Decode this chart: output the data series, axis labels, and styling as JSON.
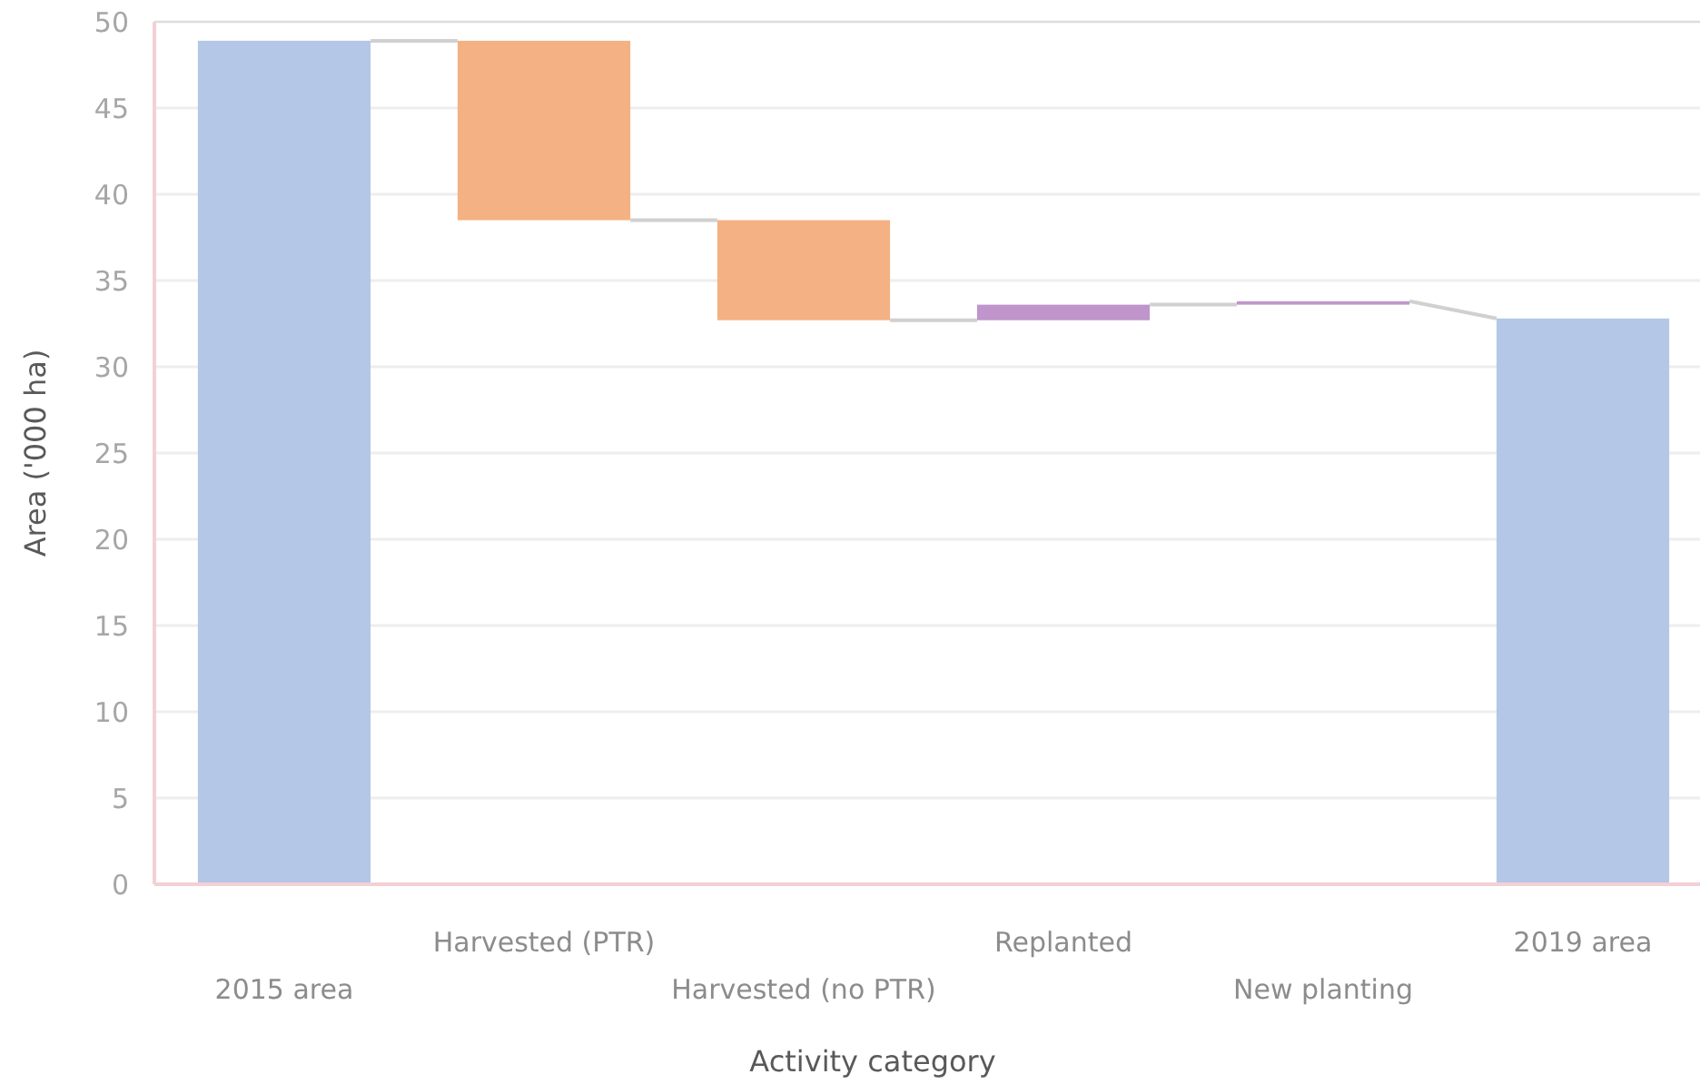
{
  "chart_data": {
    "type": "bar",
    "xlabel": "Activity category",
    "ylabel": "Area ('000 ha)",
    "categories": [
      "2015 area",
      "Harvested (PTR)",
      "Harvested (no PTR)",
      "Replanted",
      "New planting",
      "2019 area"
    ],
    "values": [
      48.9,
      -10.4,
      -5.8,
      0.9,
      0.2,
      32.8
    ],
    "base": [
      0,
      48.9,
      38.5,
      32.7,
      33.6,
      0
    ],
    "colors": [
      "#b4c7e7",
      "#f4b183",
      "#f4b183",
      "#bf95cb",
      "#bf95cb",
      "#b4c7e7"
    ],
    "ylim": [
      0,
      50
    ],
    "yticks": [
      0,
      5,
      10,
      15,
      20,
      25,
      30,
      35,
      40,
      45,
      50
    ],
    "grid": "y"
  }
}
